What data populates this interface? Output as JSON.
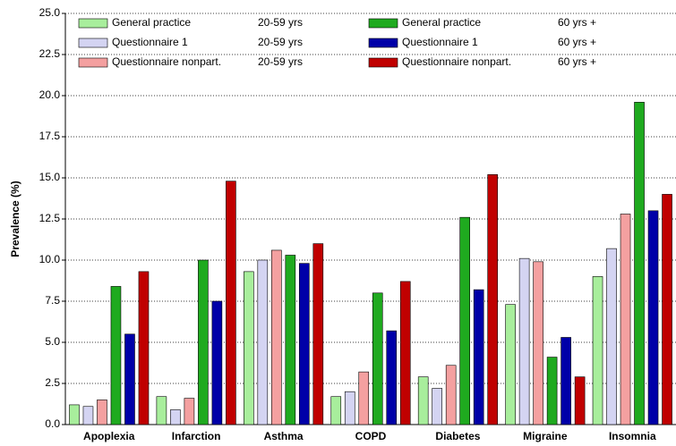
{
  "chart_data": {
    "type": "bar",
    "y_label": "Prevalence (%)",
    "categories": [
      "Apoplexia",
      "Infarction",
      "Asthma",
      "COPD",
      "Diabetes",
      "Migraine",
      "Insomnia"
    ],
    "series": [
      {
        "name": "General practice",
        "age": "20-59 yrs",
        "color": "#a8ee9c",
        "values": [
          1.2,
          1.7,
          9.3,
          1.7,
          2.9,
          7.3,
          9.0
        ]
      },
      {
        "name": "Questionnaire 1",
        "age": "20-59 yrs",
        "color": "#d4d4f2",
        "values": [
          1.1,
          0.9,
          10.0,
          2.0,
          2.2,
          10.1,
          10.7
        ]
      },
      {
        "name": "Questionnaire nonpart.",
        "age": "20-59 yrs",
        "color": "#f4a0a0",
        "values": [
          1.5,
          1.6,
          10.6,
          3.2,
          3.6,
          9.9,
          12.8
        ]
      },
      {
        "name": "General practice",
        "age": "60 yrs +",
        "color": "#1faa1f",
        "values": [
          8.4,
          10.0,
          10.3,
          8.0,
          12.6,
          4.1,
          19.6
        ]
      },
      {
        "name": "Questionnaire 1",
        "age": "60 yrs +",
        "color": "#0000a8",
        "values": [
          5.5,
          7.5,
          9.8,
          5.7,
          8.2,
          5.3,
          13.0
        ]
      },
      {
        "name": "Questionnaire nonpart.",
        "age": "60 yrs +",
        "color": "#c00000",
        "values": [
          9.3,
          14.8,
          11.0,
          8.7,
          15.2,
          2.9,
          14.0
        ]
      }
    ],
    "ylim": [
      0,
      25
    ],
    "yticks": [
      {
        "value": 0,
        "label": "0.0"
      },
      2.5,
      {
        "value": 5,
        "label": "5.0"
      },
      7.5,
      {
        "value": 10,
        "label": "10.0"
      },
      12.5,
      {
        "value": 15,
        "label": "15.0"
      },
      17.5,
      {
        "value": 20,
        "label": "20.0"
      },
      22.5,
      {
        "value": 25,
        "label": "25.0"
      }
    ],
    "grid": true
  }
}
